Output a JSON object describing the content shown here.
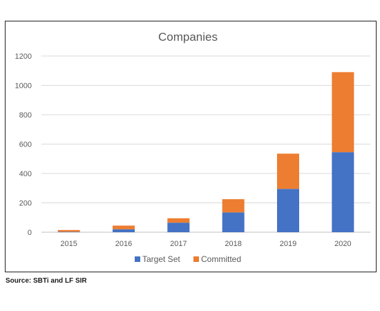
{
  "chart_data": {
    "type": "bar",
    "stacked": true,
    "title": "Companies",
    "xlabel": "",
    "ylabel": "",
    "categories": [
      "2015",
      "2016",
      "2017",
      "2018",
      "2019",
      "2020"
    ],
    "series": [
      {
        "name": "Target Set",
        "color": "#4472c4",
        "values": [
          3,
          20,
          65,
          135,
          295,
          545
        ]
      },
      {
        "name": "Committed",
        "color": "#ed7d31",
        "values": [
          12,
          25,
          30,
          90,
          240,
          545
        ]
      }
    ],
    "ylim": [
      0,
      1200
    ],
    "yticks": [
      "0",
      "200",
      "400",
      "600",
      "800",
      "1000",
      "1200"
    ],
    "grid": true,
    "legend_position": "bottom"
  },
  "source_text": "Source: SBTi and LF SIR"
}
